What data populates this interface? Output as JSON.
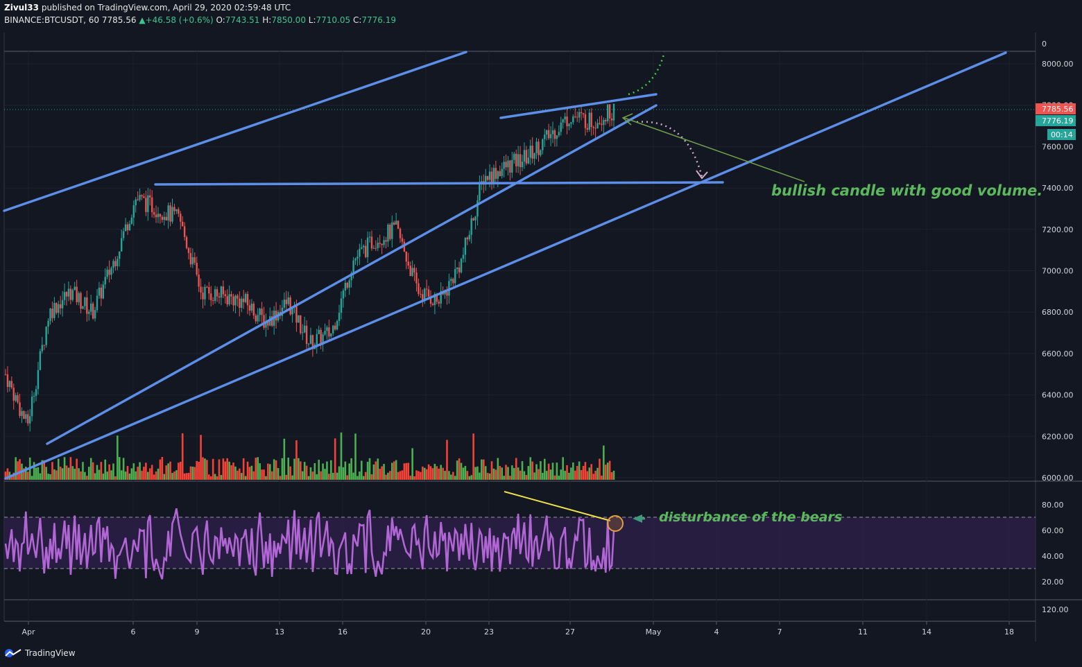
{
  "header": {
    "author": "Zivul33",
    "published": "published on TradingView.com, April 29, 2020 02:59:48 UTC",
    "symbol": "BINANCE:BTCUSDT, 60",
    "last": "7785.56",
    "change": "▲+46.58 (+0.6%)",
    "o_label": "O:",
    "o_value": "7743.51",
    "h_label": "H:",
    "h_value": "7850.00",
    "l_label": "L:",
    "l_value": "7710.05",
    "c_label": "C:",
    "c_value": "7776.19"
  },
  "footer": {
    "brand": "TradingView"
  },
  "colors": {
    "background": "#131722",
    "trendline": "#5d8fe8",
    "candle_up": "#26a69a",
    "candle_down": "#ef5350",
    "volume_up": "#4caf50",
    "volume_down": "#f44336",
    "rsi_line": "#b266d6",
    "annotation": "#4caf50"
  },
  "price_labels": {
    "last_price": "7785.56",
    "close_price": "7776.19",
    "countdown": "00:14"
  },
  "chart_data": {
    "type": "candlestick",
    "price_axis": {
      "ticks": [
        "8000.00",
        "7800.00",
        "7600.00",
        "7400.00",
        "7200.00",
        "7000.00",
        "6800.00",
        "6600.00",
        "6400.00",
        "6200.00",
        "6000.00"
      ],
      "top_label": "0",
      "range": [
        6000,
        8100
      ]
    },
    "rsi_axis": {
      "ticks": [
        "80.00",
        "60.00",
        "40.00",
        "20.00"
      ],
      "band": [
        30,
        70
      ]
    },
    "lower_pane_label": "120.00",
    "time_axis": {
      "labels": [
        "Apr",
        "6",
        "9",
        "13",
        "16",
        "20",
        "23",
        "27",
        "May",
        "4",
        "7",
        "11",
        "14",
        "18"
      ]
    },
    "price_path": [
      [
        "Apr 1",
        6500
      ],
      [
        "Apr 2",
        6250
      ],
      [
        "Apr 3",
        6800
      ],
      [
        "Apr 4",
        6900
      ],
      [
        "Apr 5",
        6800
      ],
      [
        "Apr 6",
        7050
      ],
      [
        "Apr 7",
        7350
      ],
      [
        "Apr 8",
        7300
      ],
      [
        "Apr 9",
        7250
      ],
      [
        "Apr 10",
        6900
      ],
      [
        "Apr 11",
        6880
      ],
      [
        "Apr 12",
        6850
      ],
      [
        "Apr 13",
        6750
      ],
      [
        "Apr 14",
        6850
      ],
      [
        "Apr 15",
        6650
      ],
      [
        "Apr 16",
        6700
      ],
      [
        "Apr 17",
        7050
      ],
      [
        "Apr 18",
        7150
      ],
      [
        "Apr 19",
        7200
      ],
      [
        "Apr 20",
        6900
      ],
      [
        "Apr 21",
        6850
      ],
      [
        "Apr 22",
        7050
      ],
      [
        "Apr 23",
        7450
      ],
      [
        "Apr 24",
        7500
      ],
      [
        "Apr 25",
        7550
      ],
      [
        "Apr 26",
        7650
      ],
      [
        "Apr 27",
        7750
      ],
      [
        "Apr 28",
        7720
      ],
      [
        "Apr 29",
        7776
      ]
    ],
    "annotations": [
      {
        "text": "bullish candle with good volume."
      },
      {
        "text": "disturbance of the bears"
      }
    ]
  }
}
